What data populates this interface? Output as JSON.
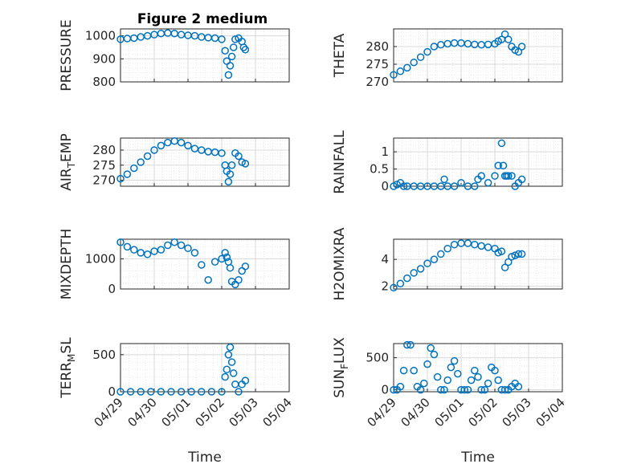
{
  "figure": {
    "title": "Figure 2 medium",
    "marker_color": "#0072BD",
    "axis_color": "#262626",
    "grid_color": "#d9d9d9",
    "minor_grid_color": "#ebebeb"
  },
  "chart_data": [
    {
      "type": "scatter",
      "ylabel": "PRESSURE",
      "title": "Figure 2 medium",
      "xlim": [
        "04/29",
        "05/03"
      ],
      "ylim": [
        800,
        1030
      ],
      "yticks": [
        800,
        900,
        1000
      ],
      "xticks": [],
      "grid": true,
      "x_days": [
        0.0,
        0.2,
        0.4,
        0.6,
        0.8,
        1.0,
        1.2,
        1.4,
        1.6,
        1.8,
        2.0,
        2.2,
        2.4,
        2.6,
        2.8,
        3.0,
        3.1,
        3.15,
        3.2,
        3.25,
        3.3,
        3.35,
        3.4,
        3.5,
        3.6,
        3.65,
        3.7
      ],
      "y": [
        985,
        988,
        990,
        995,
        1000,
        1005,
        1010,
        1012,
        1010,
        1005,
        1002,
        1000,
        995,
        992,
        990,
        985,
        935,
        890,
        830,
        870,
        910,
        950,
        985,
        990,
        975,
        950,
        940
      ]
    },
    {
      "type": "scatter",
      "ylabel": "THETA",
      "xlim": [
        "04/29",
        "05/03"
      ],
      "ylim": [
        270,
        285
      ],
      "yticks": [
        270,
        275,
        280
      ],
      "xticks": [],
      "grid": true,
      "x_days": [
        0.0,
        0.2,
        0.4,
        0.6,
        0.8,
        1.0,
        1.2,
        1.4,
        1.6,
        1.8,
        2.0,
        2.2,
        2.4,
        2.6,
        2.8,
        3.0,
        3.1,
        3.2,
        3.3,
        3.4,
        3.5,
        3.6,
        3.7,
        3.8
      ],
      "y": [
        272,
        273,
        274,
        275.5,
        277,
        278.5,
        280,
        280.5,
        280.8,
        281,
        281,
        280.8,
        280.6,
        280.5,
        280.6,
        280.8,
        281.5,
        282,
        283.5,
        282,
        280,
        279,
        278.5,
        280
      ]
    },
    {
      "type": "scatter",
      "ylabel": "AIR_TEMP",
      "xlim": [
        "04/29",
        "05/03"
      ],
      "ylim": [
        268,
        284
      ],
      "yticks": [
        270,
        275,
        280
      ],
      "xticks": [],
      "grid": true,
      "x_days": [
        0.0,
        0.2,
        0.4,
        0.6,
        0.8,
        1.0,
        1.2,
        1.4,
        1.6,
        1.8,
        2.0,
        2.2,
        2.4,
        2.6,
        2.8,
        3.0,
        3.1,
        3.15,
        3.2,
        3.25,
        3.3,
        3.4,
        3.5,
        3.6,
        3.7
      ],
      "y": [
        270.5,
        272,
        274,
        276,
        278,
        280,
        281.5,
        282.5,
        283,
        282.5,
        281.5,
        280.5,
        280,
        279.5,
        279.3,
        279,
        275,
        273,
        269.5,
        272,
        275,
        279,
        278,
        276,
        275.5
      ]
    },
    {
      "type": "scatter",
      "ylabel": "RAINFALL",
      "xlim": [
        "04/29",
        "05/03"
      ],
      "ylim": [
        0,
        1.4
      ],
      "yticks": [
        0,
        0.5,
        1
      ],
      "xticks": [],
      "grid": true,
      "x_days": [
        0.0,
        0.1,
        0.2,
        0.3,
        0.4,
        0.6,
        0.8,
        1.0,
        1.2,
        1.4,
        1.5,
        1.6,
        1.8,
        2.0,
        2.2,
        2.4,
        2.5,
        2.6,
        2.8,
        3.0,
        3.1,
        3.2,
        3.25,
        3.3,
        3.35,
        3.4,
        3.5,
        3.6,
        3.7,
        3.8
      ],
      "y": [
        0,
        0.05,
        0.1,
        0,
        0,
        0,
        0,
        0,
        0,
        0,
        0.2,
        0,
        0,
        0.1,
        0,
        0,
        0.2,
        0.3,
        0.1,
        0.3,
        0.6,
        1.25,
        0.6,
        0.3,
        0.3,
        0.3,
        0.3,
        0,
        0.1,
        0.2
      ]
    },
    {
      "type": "scatter",
      "ylabel": "MIXDEPTH",
      "xlim": [
        "04/29",
        "05/03"
      ],
      "ylim": [
        0,
        1650
      ],
      "yticks": [
        0,
        1000
      ],
      "xticks": [],
      "grid": true,
      "x_days": [
        0.0,
        0.2,
        0.4,
        0.6,
        0.8,
        1.0,
        1.2,
        1.4,
        1.6,
        1.8,
        2.0,
        2.2,
        2.4,
        2.6,
        2.8,
        3.0,
        3.1,
        3.15,
        3.2,
        3.25,
        3.3,
        3.4,
        3.5,
        3.6,
        3.7
      ],
      "y": [
        1550,
        1400,
        1300,
        1200,
        1150,
        1250,
        1300,
        1450,
        1550,
        1450,
        1350,
        1200,
        800,
        300,
        900,
        1000,
        1200,
        1050,
        900,
        700,
        250,
        150,
        300,
        600,
        750
      ]
    },
    {
      "type": "scatter",
      "ylabel": "H2OMIXRA",
      "xlim": [
        "04/29",
        "05/03"
      ],
      "ylim": [
        1.8,
        5.5
      ],
      "yticks": [
        2,
        4
      ],
      "xticks": [],
      "grid": true,
      "x_days": [
        0.0,
        0.2,
        0.4,
        0.6,
        0.8,
        1.0,
        1.2,
        1.4,
        1.6,
        1.8,
        2.0,
        2.2,
        2.4,
        2.6,
        2.8,
        3.0,
        3.1,
        3.2,
        3.3,
        3.4,
        3.5,
        3.6,
        3.7,
        3.8
      ],
      "y": [
        1.9,
        2.2,
        2.6,
        3.0,
        3.3,
        3.7,
        4.0,
        4.4,
        4.8,
        5.1,
        5.2,
        5.2,
        5.1,
        5.0,
        4.9,
        4.8,
        4.5,
        4.6,
        3.4,
        3.8,
        4.2,
        4.3,
        4.4,
        4.4
      ]
    },
    {
      "type": "scatter",
      "ylabel": "TERR_MSL",
      "xlabel": "Time",
      "xlim": [
        "04/29",
        "05/04"
      ],
      "ylim": [
        0,
        650
      ],
      "yticks": [
        0,
        500
      ],
      "xticks": [
        "04/29",
        "04/30",
        "05/01",
        "05/02",
        "05/03",
        "05/04"
      ],
      "grid": true,
      "x_days": [
        0.0,
        0.3,
        0.6,
        0.9,
        1.2,
        1.5,
        1.8,
        2.1,
        2.4,
        2.7,
        3.0,
        3.1,
        3.15,
        3.2,
        3.25,
        3.3,
        3.35,
        3.4,
        3.5,
        3.6,
        3.7
      ],
      "y": [
        0,
        0,
        0,
        0,
        0,
        0,
        0,
        0,
        0,
        0,
        0,
        200,
        300,
        500,
        600,
        400,
        250,
        100,
        0,
        100,
        150
      ]
    },
    {
      "type": "scatter",
      "ylabel": "SUN_FLUX",
      "xlabel": "Time",
      "xlim": [
        "04/29",
        "05/04"
      ],
      "ylim": [
        -30,
        720
      ],
      "yticks": [
        0,
        500
      ],
      "xticks": [
        "04/29",
        "04/30",
        "05/01",
        "05/02",
        "05/03",
        "05/04"
      ],
      "grid": true,
      "x_days": [
        0.0,
        0.1,
        0.2,
        0.3,
        0.4,
        0.5,
        0.6,
        0.7,
        0.8,
        0.9,
        1.0,
        1.1,
        1.2,
        1.3,
        1.4,
        1.5,
        1.6,
        1.7,
        1.8,
        1.9,
        2.0,
        2.1,
        2.2,
        2.3,
        2.4,
        2.5,
        2.6,
        2.7,
        2.8,
        2.9,
        3.0,
        3.1,
        3.2,
        3.3,
        3.4,
        3.5,
        3.6,
        3.7
      ],
      "y": [
        0,
        0,
        50,
        300,
        700,
        700,
        300,
        50,
        0,
        100,
        400,
        650,
        550,
        200,
        0,
        0,
        150,
        350,
        450,
        250,
        0,
        0,
        0,
        150,
        300,
        200,
        0,
        0,
        100,
        350,
        300,
        150,
        0,
        0,
        0,
        50,
        100,
        50
      ]
    }
  ]
}
